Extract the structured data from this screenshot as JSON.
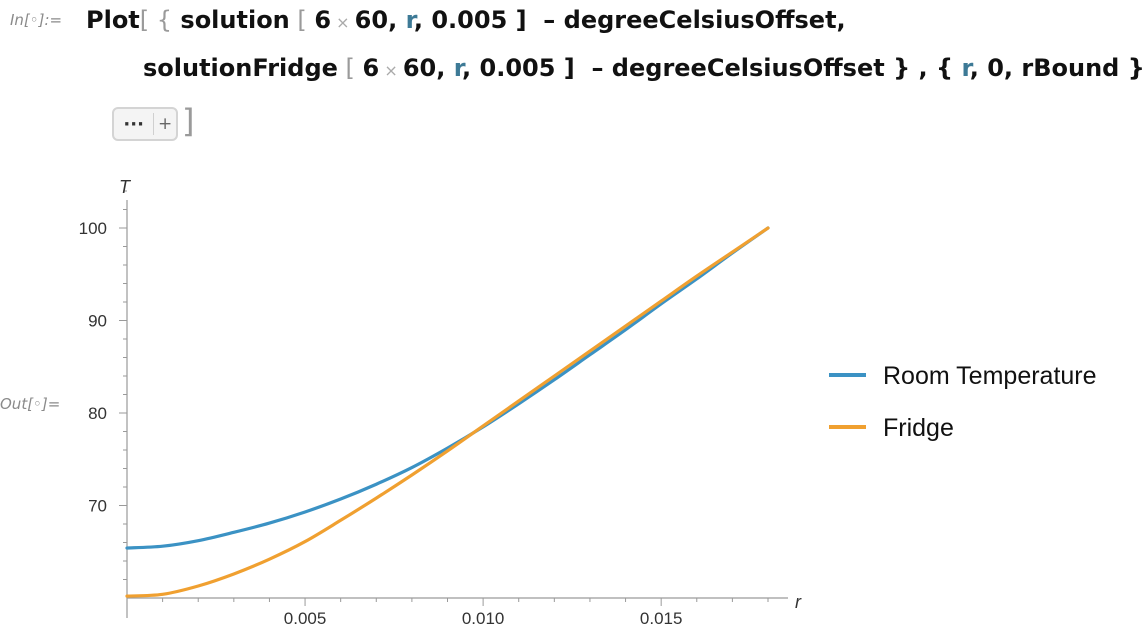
{
  "notebook": {
    "in_label": "In[◦]:=",
    "out_label": "Out[◦]=",
    "code": {
      "line1": {
        "fn": "Plot",
        "open": "[ {",
        "fn1": "solution",
        "args_open": " [ ",
        "n6": "6",
        "times": " × ",
        "n60": "60",
        "comma1": ", ",
        "r": "r",
        "rest": ", 0.005 ]  – degreeCelsiusOffset,"
      },
      "line2": {
        "fn2": "solutionFridge",
        "args_open": " [ ",
        "n6": "6",
        "times": " × ",
        "n60": "60",
        "comma1": ", ",
        "r": "r",
        "rest1": ", 0.005 ]  – degreeCelsiusOffset } , { ",
        "r2": "r",
        "rest2": ", 0, rBound } ,"
      },
      "ellipsis": "···",
      "plus": "+",
      "close": "]"
    }
  },
  "chart_data": {
    "type": "line",
    "xlabel": "r",
    "ylabel": "T",
    "xlim": [
      0,
      0.018
    ],
    "ylim": [
      60,
      100
    ],
    "xticks": [
      0.005,
      0.01,
      0.015
    ],
    "xtick_labels": [
      "0.005",
      "0.010",
      "0.015"
    ],
    "yticks": [
      70,
      80,
      90,
      100
    ],
    "ytick_labels": [
      "70",
      "80",
      "90",
      "100"
    ],
    "grid": false,
    "legend_position": "right",
    "series": [
      {
        "name": "Room Temperature",
        "color": "#3b92c4",
        "x": [
          0,
          0.001,
          0.002,
          0.003,
          0.004,
          0.005,
          0.006,
          0.007,
          0.008,
          0.009,
          0.01,
          0.011,
          0.012,
          0.013,
          0.014,
          0.015,
          0.016,
          0.017,
          0.018
        ],
        "y": [
          65.4,
          65.6,
          66.2,
          67.1,
          68.1,
          69.3,
          70.7,
          72.3,
          74.1,
          76.2,
          78.5,
          81.0,
          83.6,
          86.3,
          89.0,
          91.8,
          94.5,
          97.3,
          100
        ]
      },
      {
        "name": "Fridge",
        "color": "#f0a030",
        "x": [
          0,
          0.001,
          0.002,
          0.003,
          0.004,
          0.005,
          0.006,
          0.007,
          0.008,
          0.009,
          0.01,
          0.011,
          0.012,
          0.013,
          0.014,
          0.015,
          0.016,
          0.017,
          0.018
        ],
        "y": [
          60.2,
          60.4,
          61.3,
          62.6,
          64.2,
          66.1,
          68.4,
          70.8,
          73.3,
          75.9,
          78.6,
          81.3,
          84.0,
          86.7,
          89.4,
          92.1,
          94.8,
          97.4,
          100
        ]
      }
    ]
  }
}
